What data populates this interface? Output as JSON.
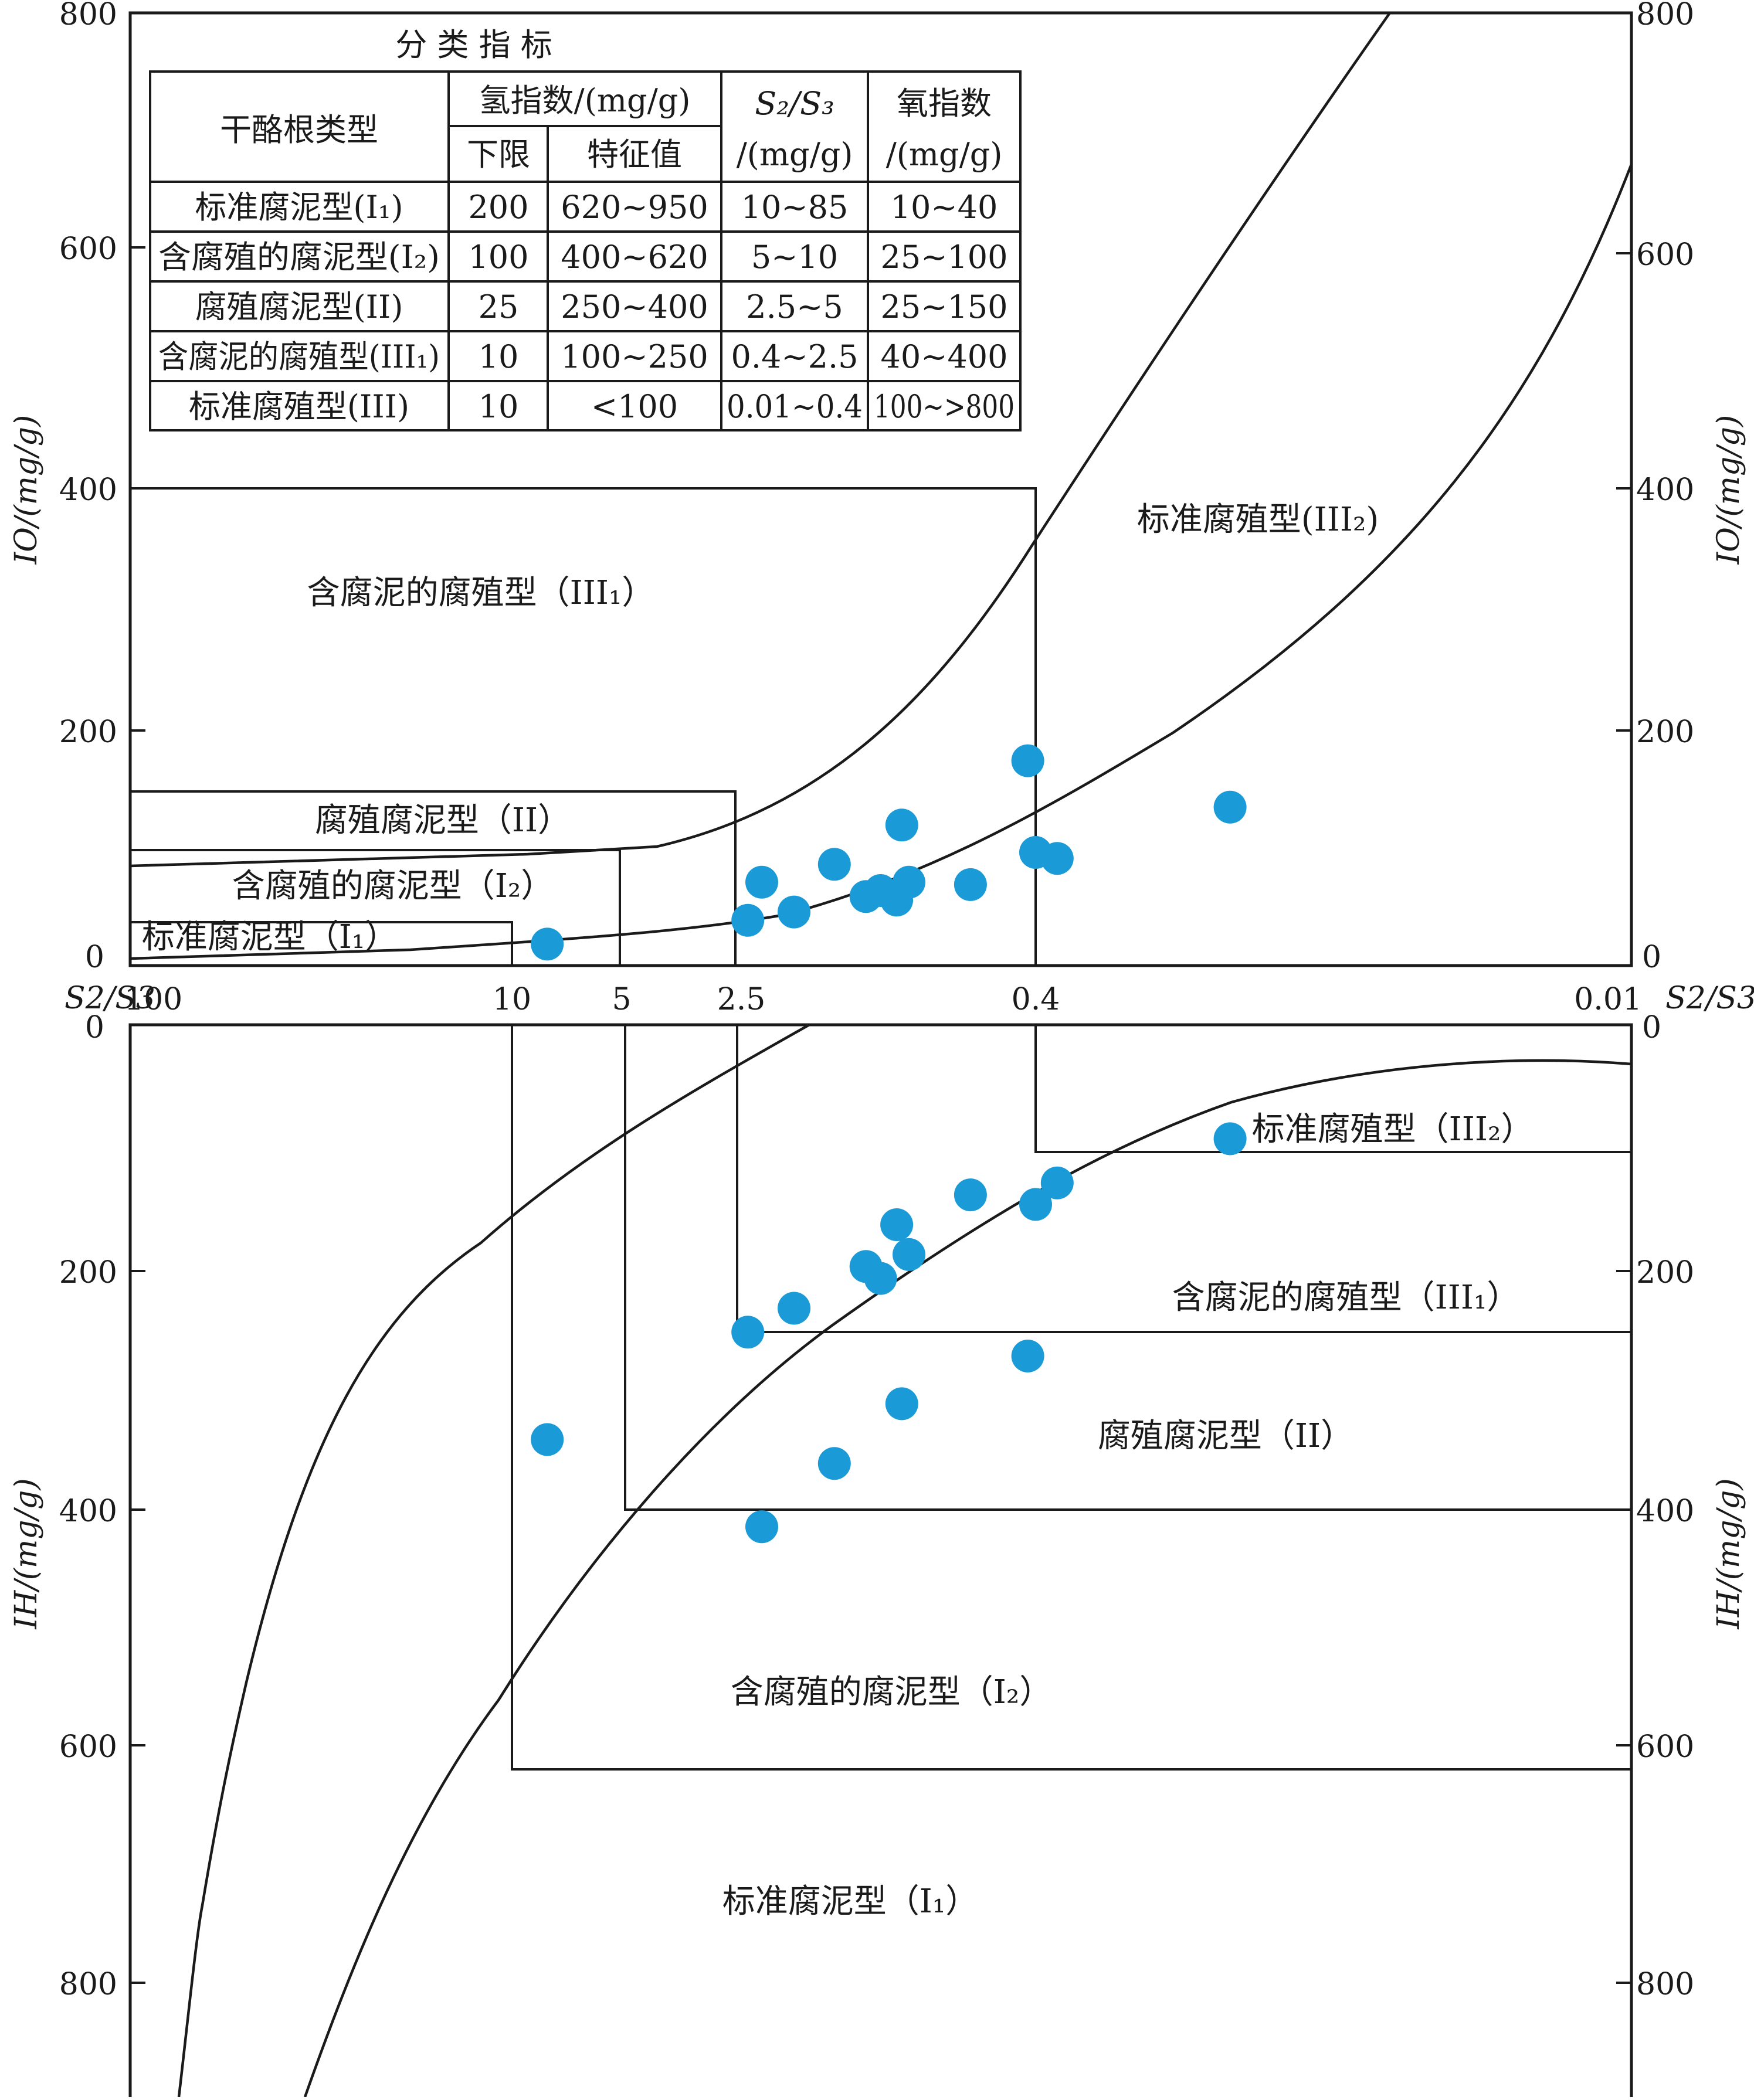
{
  "chart_data": [
    {
      "type": "scatter",
      "xlabel": "S2/S3",
      "ylabel": "IO/(mg/g)",
      "y_range": [
        0,
        800
      ],
      "y_ticks": [
        "0",
        "200",
        "400",
        "600",
        "800"
      ],
      "x_ticks": [
        "100",
        "10",
        "5",
        "2.5",
        "0.4",
        "0.01"
      ],
      "x_label_left": "S2/S3",
      "x_label_right": "S2/S3",
      "ylabel_left": "IO/(mg/g)",
      "ylabel_right": "IO/(mg/g)",
      "points": [
        {
          "x": 8,
          "y": 18
        },
        {
          "x": 2.4,
          "y": 38
        },
        {
          "x": 2.2,
          "y": 70
        },
        {
          "x": 1.8,
          "y": 45
        },
        {
          "x": 1.4,
          "y": 85
        },
        {
          "x": 1.15,
          "y": 58
        },
        {
          "x": 1.05,
          "y": 63
        },
        {
          "x": 0.95,
          "y": 55
        },
        {
          "x": 0.92,
          "y": 118
        },
        {
          "x": 0.88,
          "y": 70
        },
        {
          "x": 0.6,
          "y": 68
        },
        {
          "x": 0.42,
          "y": 172
        },
        {
          "x": 0.4,
          "y": 95
        },
        {
          "x": 0.35,
          "y": 90
        },
        {
          "x": 0.12,
          "y": 133
        }
      ],
      "region_labels": {
        "r_III2": "标准腐殖型(III₂)",
        "r_III1": "含腐泥的腐殖型（III₁）",
        "r_II": "腐殖腐泥型（II）",
        "r_I2": "含腐殖的腐泥型（I₂）",
        "r_I1": "标准腐泥型（I₁）"
      }
    },
    {
      "type": "scatter",
      "xlabel": "S2/S3",
      "ylabel": "IH/(mg/g)",
      "y_range": [
        0,
        900
      ],
      "y_ticks": [
        "0",
        "200",
        "400",
        "600",
        "800"
      ],
      "ylabel_left": "IH/(mg/g)",
      "ylabel_right": "IH/(mg/g)",
      "points": [
        {
          "x": 8,
          "y": 345
        },
        {
          "x": 2.4,
          "y": 255
        },
        {
          "x": 2.2,
          "y": 418
        },
        {
          "x": 1.8,
          "y": 235
        },
        {
          "x": 1.4,
          "y": 365
        },
        {
          "x": 1.15,
          "y": 200
        },
        {
          "x": 1.05,
          "y": 210
        },
        {
          "x": 0.95,
          "y": 165
        },
        {
          "x": 0.92,
          "y": 315
        },
        {
          "x": 0.88,
          "y": 190
        },
        {
          "x": 0.6,
          "y": 140
        },
        {
          "x": 0.42,
          "y": 275
        },
        {
          "x": 0.4,
          "y": 148
        },
        {
          "x": 0.35,
          "y": 130
        },
        {
          "x": 0.12,
          "y": 93
        }
      ],
      "region_labels": {
        "r_III2": "标准腐殖型（III₂）",
        "r_III1": "含腐泥的腐殖型（III₁）",
        "r_II": "腐殖腐泥型（II）",
        "r_I2": "含腐殖的腐泥型（I₂）",
        "r_I1": "标准腐泥型（I₁）"
      }
    }
  ],
  "marker_color": "#1a9ad6",
  "table": {
    "title": "分  类  指  标",
    "header": {
      "type": "干酪根类型",
      "hydrogen": "氢指数/(mg/g)",
      "lower": "下限",
      "feature": "特征值",
      "s2s3_a": "S₂/S₃",
      "s2s3_b": "/(mg/g)",
      "oxygen_a": "氧指数",
      "oxygen_b": "/(mg/g)"
    },
    "rows": [
      {
        "type": "标准腐泥型(I₁)",
        "lower": "200",
        "feature": "620~950",
        "s2s3": "10~85",
        "oxygen": "10~40"
      },
      {
        "type": "含腐殖的腐泥型(I₂)",
        "lower": "100",
        "feature": "400~620",
        "s2s3": "5~10",
        "oxygen": "25~100"
      },
      {
        "type": "腐殖腐泥型(II)",
        "lower": "25",
        "feature": "250~400",
        "s2s3": "2.5~5",
        "oxygen": "25~150"
      },
      {
        "type": "含腐泥的腐殖型(III₁)",
        "lower": "10",
        "feature": "100~250",
        "s2s3": "0.4~2.5",
        "oxygen": "40~400"
      },
      {
        "type": "标准腐殖型(III)",
        "lower": "10",
        "feature": "<100",
        "s2s3": "0.01~0.4",
        "oxygen": "100~>800"
      }
    ]
  }
}
